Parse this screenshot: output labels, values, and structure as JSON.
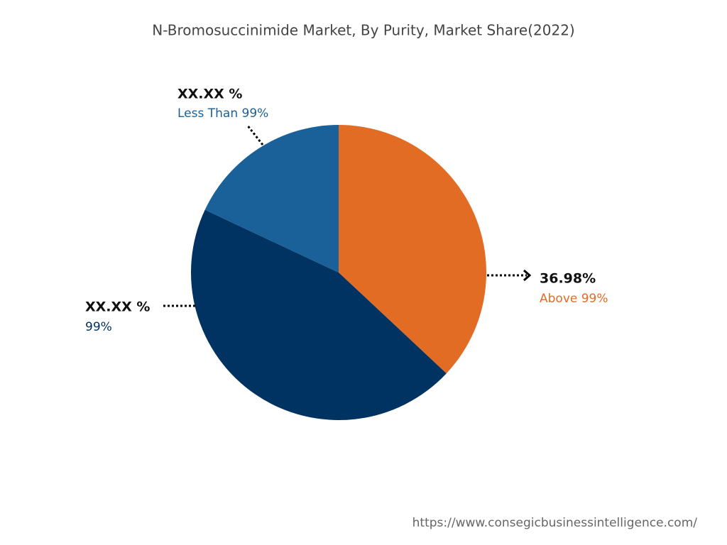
{
  "chart_data": {
    "type": "pie",
    "title": "N-Bromosuccinimide Market, By Purity, Market Share(2022)",
    "categories": [
      "Above 99%",
      "99%",
      "Less Than 99%"
    ],
    "values": [
      36.98,
      45,
      18.02
    ],
    "value_labels": [
      "36.98%",
      "XX.XX %",
      "XX.XX %"
    ],
    "colors": [
      "#e36c25",
      "#003361",
      "#1a6199"
    ],
    "source": "https://www.consegicbusinessintelligence.com/"
  }
}
